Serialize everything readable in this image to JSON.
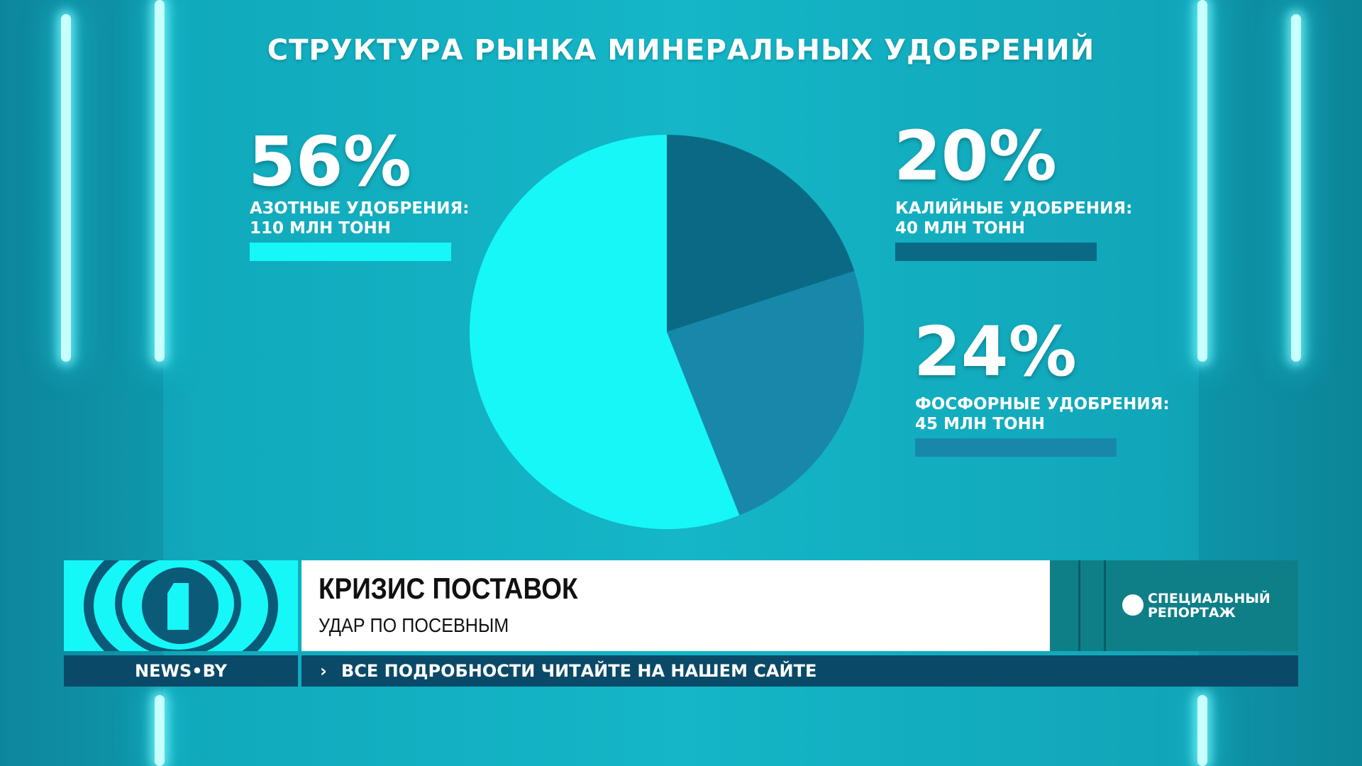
{
  "title": "СТРУКТУРА РЫНКА МИНЕРАЛЬНЫХ УДОБРЕНИЙ",
  "colors": {
    "nitrogen": "#16f7f7",
    "potash": "#0a6a86",
    "phosphate": "#1888aa"
  },
  "chart_data": {
    "type": "pie",
    "title": "СТРУКТУРА РЫНКА МИНЕРАЛЬНЫХ УДОБРЕНИЙ",
    "slices": [
      {
        "label": "КАЛИЙНЫЕ УДОБРЕНИЯ:",
        "value_text": "40 МЛН ТОНН",
        "percent": 20,
        "percent_label": "20%",
        "value": 40,
        "color": "#0a6a86"
      },
      {
        "label": "ФОСФОРНЫЕ УДОБРЕНИЯ:",
        "value_text": "45 МЛН ТОНН",
        "percent": 24,
        "percent_label": "24%",
        "value": 45,
        "color": "#1888aa"
      },
      {
        "label": "АЗОТНЫЕ УДОБРЕНИЯ:",
        "value_text": "110 МЛН ТОНН",
        "percent": 56,
        "percent_label": "56%",
        "value": 110,
        "color": "#16f7f7"
      }
    ]
  },
  "ticker": {
    "headline": "КРИЗИС ПОСТАВОК",
    "subhead": "УДАР ПО ПОСЕВНЫМ",
    "badge_line1": "СПЕЦИАЛЬНЫЙ",
    "badge_line2": "РЕПОРТАЖ",
    "site": "NEWS•BY",
    "chevron": "›",
    "crawl": "ВСЕ ПОДРОБНОСТИ ЧИТАЙТЕ НА НАШЕМ САЙТЕ"
  }
}
